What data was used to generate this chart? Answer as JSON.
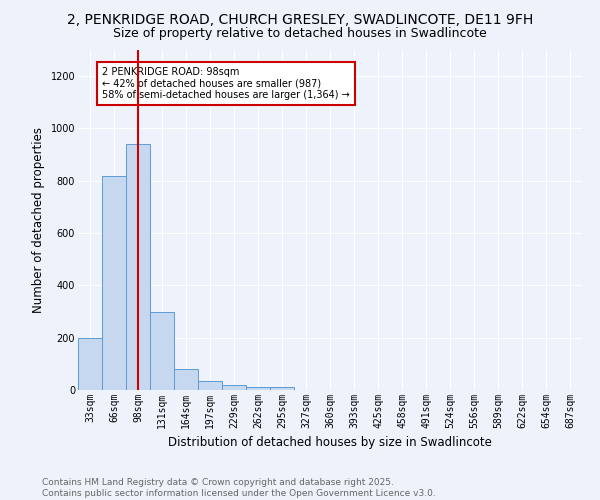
{
  "title_line1": "2, PENKRIDGE ROAD, CHURCH GRESLEY, SWADLINCOTE, DE11 9FH",
  "title_line2": "Size of property relative to detached houses in Swadlincote",
  "xlabel": "Distribution of detached houses by size in Swadlincote",
  "ylabel": "Number of detached properties",
  "bar_labels": [
    "33sqm",
    "66sqm",
    "98sqm",
    "131sqm",
    "164sqm",
    "197sqm",
    "229sqm",
    "262sqm",
    "295sqm",
    "327sqm",
    "360sqm",
    "393sqm",
    "425sqm",
    "458sqm",
    "491sqm",
    "524sqm",
    "556sqm",
    "589sqm",
    "622sqm",
    "654sqm",
    "687sqm"
  ],
  "bar_values": [
    197,
    820,
    940,
    300,
    82,
    35,
    20,
    10,
    10,
    0,
    0,
    0,
    0,
    0,
    0,
    0,
    0,
    0,
    0,
    0,
    0
  ],
  "bar_color": "#c5d8f0",
  "bar_edge_color": "#5b9bd5",
  "annotation_text": "2 PENKRIDGE ROAD: 98sqm\n← 42% of detached houses are smaller (987)\n58% of semi-detached houses are larger (1,364) →",
  "red_line_x": 2,
  "ylim": [
    0,
    1300
  ],
  "yticks": [
    0,
    200,
    400,
    600,
    800,
    1000,
    1200
  ],
  "background_color": "#eef2fb",
  "plot_bg_color": "#eef2fb",
  "grid_color": "#ffffff",
  "red_line_color": "#cc0000",
  "annotation_box_color": "#ffffff",
  "annotation_box_edge": "#cc0000",
  "footer_text": "Contains HM Land Registry data © Crown copyright and database right 2025.\nContains public sector information licensed under the Open Government Licence v3.0.",
  "title_fontsize": 10,
  "subtitle_fontsize": 9,
  "tick_fontsize": 7,
  "ylabel_fontsize": 8.5,
  "xlabel_fontsize": 8.5,
  "footer_fontsize": 6.5
}
